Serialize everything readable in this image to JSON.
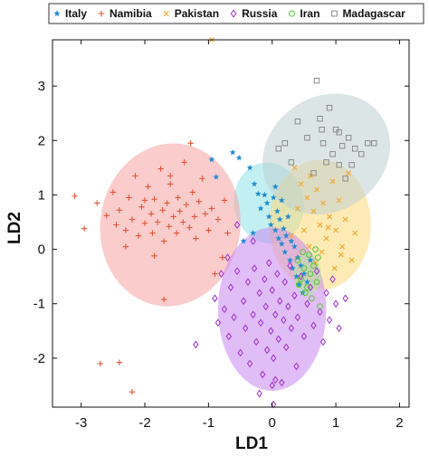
{
  "chart_data": {
    "type": "scatter",
    "title": "",
    "xlabel": "LD1",
    "ylabel": "LD2",
    "xlim": [
      -3.45,
      2.15
    ],
    "ylim": [
      -2.9,
      3.85
    ],
    "xticks": [
      -3,
      -2,
      -1,
      0,
      1,
      2
    ],
    "yticks": [
      -2,
      -1,
      0,
      1,
      2,
      3
    ],
    "grid": false,
    "legend_position": "top",
    "series": [
      {
        "name": "Italy",
        "marker": "star",
        "color": "#1f8ad0",
        "ellipse": {
          "cx": -0.05,
          "cy": 0.85,
          "rx": 0.55,
          "ry": 0.75,
          "angle": 10,
          "fill": "#8fe3e8"
        },
        "points": [
          [
            -0.95,
            1.65
          ],
          [
            -0.88,
            1.33
          ],
          [
            -0.62,
            1.78
          ],
          [
            -0.52,
            1.68
          ],
          [
            -0.35,
            1.5
          ],
          [
            -0.28,
            1.2
          ],
          [
            -0.22,
            1.02
          ],
          [
            -0.18,
            0.75
          ],
          [
            -0.12,
            1.0
          ],
          [
            -0.08,
            0.85
          ],
          [
            -0.05,
            0.6
          ],
          [
            -0.02,
            0.45
          ],
          [
            0.02,
            0.95
          ],
          [
            0.05,
            0.35
          ],
          [
            0.08,
            0.7
          ],
          [
            0.1,
            0.2
          ],
          [
            0.12,
            0.55
          ],
          [
            0.15,
            0.1
          ],
          [
            0.18,
            0.38
          ],
          [
            0.2,
            -0.05
          ],
          [
            0.22,
            0.25
          ],
          [
            0.25,
            0.6
          ],
          [
            0.28,
            -0.2
          ],
          [
            0.3,
            0.15
          ],
          [
            0.32,
            -0.35
          ],
          [
            0.35,
            0.05
          ],
          [
            0.38,
            -0.5
          ],
          [
            0.4,
            -0.15
          ],
          [
            0.42,
            -0.65
          ],
          [
            0.45,
            -0.3
          ],
          [
            0.48,
            -0.8
          ],
          [
            0.5,
            -0.45
          ],
          [
            0.55,
            -0.6
          ],
          [
            0.6,
            -0.2
          ],
          [
            -0.3,
            0.3
          ],
          [
            -0.45,
            0.15
          ],
          [
            0.05,
            1.15
          ],
          [
            0.15,
            0.9
          ]
        ]
      },
      {
        "name": "Namibia",
        "marker": "plus",
        "color": "#e2553a",
        "ellipse": {
          "cx": -1.6,
          "cy": 0.45,
          "rx": 1.1,
          "ry": 1.5,
          "angle": -8,
          "fill": "#f5a3a3"
        },
        "points": [
          [
            -3.1,
            0.98
          ],
          [
            -2.95,
            0.38
          ],
          [
            -2.75,
            0.85
          ],
          [
            -2.6,
            0.62
          ],
          [
            -2.5,
            1.05
          ],
          [
            -2.45,
            0.45
          ],
          [
            -2.4,
            0.72
          ],
          [
            -2.3,
            0.35
          ],
          [
            -2.25,
            0.95
          ],
          [
            -2.2,
            0.55
          ],
          [
            -2.15,
            1.35
          ],
          [
            -2.1,
            0.25
          ],
          [
            -2.05,
            0.78
          ],
          [
            -2.0,
            0.48
          ],
          [
            -1.95,
            1.15
          ],
          [
            -1.9,
            0.65
          ],
          [
            -1.88,
            0.3
          ],
          [
            -1.85,
            0.92
          ],
          [
            -1.8,
            0.5
          ],
          [
            -1.75,
            1.48
          ],
          [
            -1.72,
            0.72
          ],
          [
            -1.7,
            0.15
          ],
          [
            -1.65,
            0.85
          ],
          [
            -1.62,
            0.42
          ],
          [
            -1.6,
            1.2
          ],
          [
            -1.55,
            0.6
          ],
          [
            -1.5,
            0.3
          ],
          [
            -1.48,
            0.95
          ],
          [
            -1.45,
            0.7
          ],
          [
            -1.4,
            0.5
          ],
          [
            -1.38,
            1.6
          ],
          [
            -1.35,
            0.82
          ],
          [
            -1.3,
            0.4
          ],
          [
            -1.25,
            1.05
          ],
          [
            -1.22,
            0.6
          ],
          [
            -1.2,
            0.2
          ],
          [
            -1.15,
            0.88
          ],
          [
            -1.1,
            1.3
          ],
          [
            -1.05,
            0.65
          ],
          [
            -1.0,
            0.35
          ],
          [
            -0.95,
            0.75
          ],
          [
            -0.85,
            0.55
          ],
          [
            -0.75,
            0.9
          ],
          [
            -1.7,
            -0.92
          ],
          [
            -0.9,
            -0.45
          ],
          [
            -0.78,
            -0.15
          ],
          [
            -0.7,
            0.3
          ],
          [
            -2.7,
            -2.1
          ],
          [
            -2.4,
            -2.08
          ],
          [
            -2.2,
            -2.62
          ],
          [
            -1.85,
            -0.12
          ],
          [
            -1.6,
            1.35
          ],
          [
            -2.0,
            0.9
          ],
          [
            -2.3,
            0.05
          ],
          [
            -1.28,
            1.95
          ]
        ]
      },
      {
        "name": "Pakistan",
        "marker": "x",
        "color": "#f0a830",
        "ellipse": {
          "cx": 0.75,
          "cy": 0.45,
          "rx": 0.8,
          "ry": 1.2,
          "angle": 0,
          "fill": "#fdd978"
        },
        "points": [
          [
            0.35,
            1.5
          ],
          [
            0.45,
            1.2
          ],
          [
            0.55,
            0.95
          ],
          [
            0.6,
            1.35
          ],
          [
            0.65,
            0.7
          ],
          [
            0.7,
            1.1
          ],
          [
            0.75,
            0.45
          ],
          [
            0.8,
            0.85
          ],
          [
            0.85,
            0.2
          ],
          [
            0.9,
            0.6
          ],
          [
            0.95,
            1.25
          ],
          [
            1.0,
            0.35
          ],
          [
            1.05,
            0.9
          ],
          [
            1.1,
            0.05
          ],
          [
            1.15,
            0.55
          ],
          [
            1.2,
            1.4
          ],
          [
            1.25,
            -0.2
          ],
          [
            1.3,
            0.3
          ],
          [
            0.5,
            0.35
          ],
          [
            0.58,
            0.05
          ],
          [
            0.68,
            -0.25
          ],
          [
            0.78,
            -0.05
          ],
          [
            0.88,
            0.4
          ],
          [
            0.98,
            -0.35
          ],
          [
            1.08,
            -0.1
          ],
          [
            0.4,
            0.75
          ],
          [
            0.3,
            0.25
          ],
          [
            -0.95,
            3.85
          ]
        ]
      },
      {
        "name": "Russia",
        "marker": "diamond",
        "color": "#9b30c8",
        "ellipse": {
          "cx": 0.0,
          "cy": -1.1,
          "rx": 0.85,
          "ry": 1.5,
          "angle": 0,
          "fill": "#c987f0"
        },
        "points": [
          [
            -0.9,
            -0.9
          ],
          [
            -0.85,
            -1.35
          ],
          [
            -0.8,
            -0.45
          ],
          [
            -0.75,
            -1.1
          ],
          [
            -0.7,
            -0.15
          ],
          [
            -0.68,
            -1.6
          ],
          [
            -0.65,
            -0.7
          ],
          [
            -0.6,
            -1.25
          ],
          [
            -0.55,
            -0.4
          ],
          [
            -0.5,
            -1.9
          ],
          [
            -0.45,
            -0.95
          ],
          [
            -0.42,
            -1.45
          ],
          [
            -0.38,
            -0.6
          ],
          [
            -0.35,
            -2.1
          ],
          [
            -0.3,
            -1.2
          ],
          [
            -0.28,
            -0.35
          ],
          [
            -0.25,
            -1.7
          ],
          [
            -0.2,
            -0.8
          ],
          [
            -0.18,
            -1.35
          ],
          [
            -0.15,
            -2.3
          ],
          [
            -0.12,
            -0.55
          ],
          [
            -0.1,
            -1.05
          ],
          [
            -0.08,
            -1.85
          ],
          [
            -0.05,
            -0.25
          ],
          [
            -0.02,
            -1.5
          ],
          [
            0.0,
            -0.75
          ],
          [
            0.02,
            -2.0
          ],
          [
            0.05,
            -1.2
          ],
          [
            0.08,
            -0.45
          ],
          [
            0.1,
            -1.65
          ],
          [
            0.12,
            -0.95
          ],
          [
            0.15,
            -2.45
          ],
          [
            0.18,
            -1.3
          ],
          [
            0.2,
            -0.6
          ],
          [
            0.22,
            -1.8
          ],
          [
            0.25,
            -1.05
          ],
          [
            0.28,
            -0.3
          ],
          [
            0.3,
            -1.45
          ],
          [
            0.35,
            -0.85
          ],
          [
            0.38,
            -2.15
          ],
          [
            0.4,
            -1.25
          ],
          [
            0.45,
            -0.5
          ],
          [
            0.5,
            -1.6
          ],
          [
            0.55,
            -1.0
          ],
          [
            0.6,
            -0.7
          ],
          [
            0.65,
            -1.4
          ],
          [
            0.7,
            -0.4
          ],
          [
            0.75,
            -1.15
          ],
          [
            0.8,
            -1.7
          ],
          [
            0.85,
            -0.8
          ],
          [
            0.9,
            -1.3
          ],
          [
            0.95,
            -0.55
          ],
          [
            1.0,
            -1.0
          ],
          [
            1.05,
            -1.45
          ],
          [
            -1.2,
            -1.75
          ],
          [
            -0.55,
            0.45
          ],
          [
            -0.3,
            0.15
          ],
          [
            0.0,
            -2.5
          ],
          [
            0.05,
            -2.4
          ],
          [
            -0.2,
            -2.65
          ],
          [
            0.02,
            -2.85
          ],
          [
            1.15,
            -0.9
          ]
        ]
      },
      {
        "name": "Iran",
        "marker": "circle",
        "color": "#58c43c",
        "ellipse": {
          "cx": 0.55,
          "cy": -0.45,
          "rx": 0.22,
          "ry": 0.4,
          "angle": 0,
          "fill": "#b4e8a0"
        },
        "points": [
          [
            0.4,
            -0.2
          ],
          [
            0.45,
            -0.55
          ],
          [
            0.5,
            -0.35
          ],
          [
            0.55,
            -0.7
          ],
          [
            0.58,
            -0.1
          ],
          [
            0.6,
            -0.45
          ],
          [
            0.65,
            -0.3
          ],
          [
            0.7,
            -0.6
          ],
          [
            0.72,
            -0.15
          ],
          [
            0.75,
            -1.05
          ],
          [
            0.52,
            -0.8
          ],
          [
            0.48,
            -0.05
          ],
          [
            0.62,
            -0.9
          ],
          [
            0.68,
            0.0
          ],
          [
            0.42,
            -0.65
          ]
        ]
      },
      {
        "name": "Madagascar",
        "marker": "square",
        "color": "#8a8a8a",
        "ellipse": {
          "cx": 0.85,
          "cy": 1.75,
          "rx": 1.05,
          "ry": 1.05,
          "angle": 35,
          "fill": "#bfcfcf"
        },
        "points": [
          [
            0.4,
            2.35
          ],
          [
            0.55,
            2.05
          ],
          [
            0.7,
            3.1
          ],
          [
            0.75,
            2.4
          ],
          [
            0.78,
            2.2
          ],
          [
            0.8,
            1.95
          ],
          [
            0.85,
            1.6
          ],
          [
            0.9,
            2.6
          ],
          [
            0.95,
            1.75
          ],
          [
            1.0,
            2.2
          ],
          [
            1.05,
            1.55
          ],
          [
            1.1,
            1.9
          ],
          [
            1.15,
            1.3
          ],
          [
            1.2,
            2.05
          ],
          [
            1.3,
            1.85
          ],
          [
            1.4,
            1.75
          ],
          [
            1.5,
            1.95
          ],
          [
            1.6,
            1.95
          ],
          [
            0.2,
            1.95
          ],
          [
            0.3,
            1.6
          ],
          [
            0.1,
            1.85
          ],
          [
            1.05,
            2.15
          ],
          [
            0.65,
            1.4
          ],
          [
            1.25,
            1.55
          ]
        ]
      }
    ]
  }
}
